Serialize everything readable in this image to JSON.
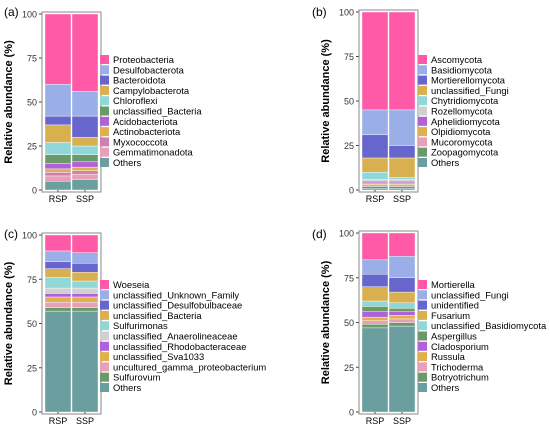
{
  "chart_data": [
    {
      "panel_label": "(a)",
      "type": "bar",
      "stacked": true,
      "ylabel": "Relative abundance (%)",
      "ylim": [
        0,
        100
      ],
      "yticks": [
        0,
        25,
        50,
        75,
        100
      ],
      "categories": [
        "RSP",
        "SSP"
      ],
      "series": [
        {
          "name": "Others",
          "color": "#6b9e9e",
          "values": [
            5,
            6
          ]
        },
        {
          "name": "Gemmatimonadota",
          "color": "#e8a0b8",
          "values": [
            3,
            3
          ]
        },
        {
          "name": "Myxococcota",
          "color": "#d080b0",
          "values": [
            2,
            2
          ]
        },
        {
          "name": "Actinobacteriota",
          "color": "#e0b050",
          "values": [
            2,
            2
          ]
        },
        {
          "name": "Acidobacteriota",
          "color": "#b060d8",
          "values": [
            3,
            3
          ]
        },
        {
          "name": "unclassified_Bacteria",
          "color": "#6a9a6a",
          "values": [
            5,
            4
          ]
        },
        {
          "name": "Chloroflexi",
          "color": "#90d8d8",
          "values": [
            7,
            5
          ]
        },
        {
          "name": "Campylobacterota",
          "color": "#d8b050",
          "values": [
            10,
            5
          ]
        },
        {
          "name": "Bacteroidota",
          "color": "#6666cc",
          "values": [
            5,
            12
          ]
        },
        {
          "name": "Desulfobacterota",
          "color": "#9aaee8",
          "values": [
            18,
            14
          ]
        },
        {
          "name": "Proteobacteria",
          "color": "#ff5aa8",
          "values": [
            40,
            44
          ]
        }
      ]
    },
    {
      "panel_label": "(b)",
      "type": "bar",
      "stacked": true,
      "ylabel": "Relative abundance (%)",
      "ylim": [
        0,
        100
      ],
      "yticks": [
        0,
        25,
        50,
        75,
        100
      ],
      "categories": [
        "RSP",
        "SSP"
      ],
      "series": [
        {
          "name": "Others",
          "color": "#6b9e9e",
          "values": [
            1,
            1
          ]
        },
        {
          "name": "Zoopagomycota",
          "color": "#6a9a6a",
          "values": [
            1,
            1
          ]
        },
        {
          "name": "Mucoromycota",
          "color": "#e8a0b8",
          "values": [
            1,
            1
          ]
        },
        {
          "name": "Olpidiomycota",
          "color": "#e0b050",
          "values": [
            1,
            1
          ]
        },
        {
          "name": "Aphelidiomycota",
          "color": "#b060d8",
          "values": [
            1,
            1
          ]
        },
        {
          "name": "Rozellomycota",
          "color": "#d0d0d0",
          "values": [
            1,
            1
          ]
        },
        {
          "name": "Chytridiomycota",
          "color": "#90d8d8",
          "values": [
            4,
            1
          ]
        },
        {
          "name": "unclassified_Fungi",
          "color": "#d8b050",
          "values": [
            8,
            11
          ]
        },
        {
          "name": "Mortierellomycota",
          "color": "#6666cc",
          "values": [
            13,
            7
          ]
        },
        {
          "name": "Basidiomycota",
          "color": "#9aaee8",
          "values": [
            14,
            20
          ]
        },
        {
          "name": "Ascomycota",
          "color": "#ff5aa8",
          "values": [
            55,
            55
          ]
        }
      ]
    },
    {
      "panel_label": "(c)",
      "type": "bar",
      "stacked": true,
      "ylabel": "Relative abundance (%)",
      "ylim": [
        0,
        100
      ],
      "yticks": [
        0,
        25,
        50,
        75,
        100
      ],
      "categories": [
        "RSP",
        "SSP"
      ],
      "series": [
        {
          "name": "Others",
          "color": "#6b9e9e",
          "values": [
            57,
            57
          ]
        },
        {
          "name": "Sulfurovum",
          "color": "#6a9a6a",
          "values": [
            2,
            2
          ]
        },
        {
          "name": "uncultured_gamma_proteobacterium",
          "color": "#e8a0b8",
          "values": [
            3,
            3
          ]
        },
        {
          "name": "unclassified_Sva1033",
          "color": "#e0b050",
          "values": [
            3,
            3
          ]
        },
        {
          "name": "unclassified_Rhodobacteraceae",
          "color": "#b060d8",
          "values": [
            2,
            2
          ]
        },
        {
          "name": "unclassified_Anaerolineaceae",
          "color": "#d0d0d0",
          "values": [
            3,
            3
          ]
        },
        {
          "name": "Sulfurimonas",
          "color": "#90d8d8",
          "values": [
            6,
            4
          ]
        },
        {
          "name": "unclassified_Bacteria",
          "color": "#d8b050",
          "values": [
            5,
            5
          ]
        },
        {
          "name": "unclassified_Desulfobulbaceae",
          "color": "#6666cc",
          "values": [
            4,
            5
          ]
        },
        {
          "name": "unclassified_Unknown_Family",
          "color": "#9aaee8",
          "values": [
            6,
            6
          ]
        },
        {
          "name": "Woeseia",
          "color": "#ff5aa8",
          "values": [
            9,
            10
          ]
        }
      ]
    },
    {
      "panel_label": "(d)",
      "type": "bar",
      "stacked": true,
      "ylabel": "Relative abundance (%)",
      "ylim": [
        0,
        100
      ],
      "yticks": [
        0,
        25,
        50,
        75,
        100
      ],
      "categories": [
        "RSP",
        "SSP"
      ],
      "series": [
        {
          "name": "Others",
          "color": "#6b9e9e",
          "values": [
            47,
            48
          ]
        },
        {
          "name": "Botryotrichum",
          "color": "#6a9a6a",
          "values": [
            2,
            2
          ]
        },
        {
          "name": "Trichoderma",
          "color": "#e8a0b8",
          "values": [
            2,
            2
          ]
        },
        {
          "name": "Russula",
          "color": "#e0b050",
          "values": [
            2,
            2
          ]
        },
        {
          "name": "Cladosporium",
          "color": "#b060d8",
          "values": [
            3,
            2
          ]
        },
        {
          "name": "Aspergillus",
          "color": "#6a9a6a",
          "values": [
            3,
            2
          ]
        },
        {
          "name": "unclassified_Basidiomycota",
          "color": "#90d8d8",
          "values": [
            3,
            3
          ]
        },
        {
          "name": "Fusarium",
          "color": "#d8b050",
          "values": [
            8,
            6
          ]
        },
        {
          "name": "unidentified",
          "color": "#6666cc",
          "values": [
            7,
            8
          ]
        },
        {
          "name": "unclassified_Fungi",
          "color": "#9aaee8",
          "values": [
            8,
            12
          ]
        },
        {
          "name": "Mortierella",
          "color": "#ff5aa8",
          "values": [
            15,
            13
          ]
        }
      ]
    }
  ]
}
